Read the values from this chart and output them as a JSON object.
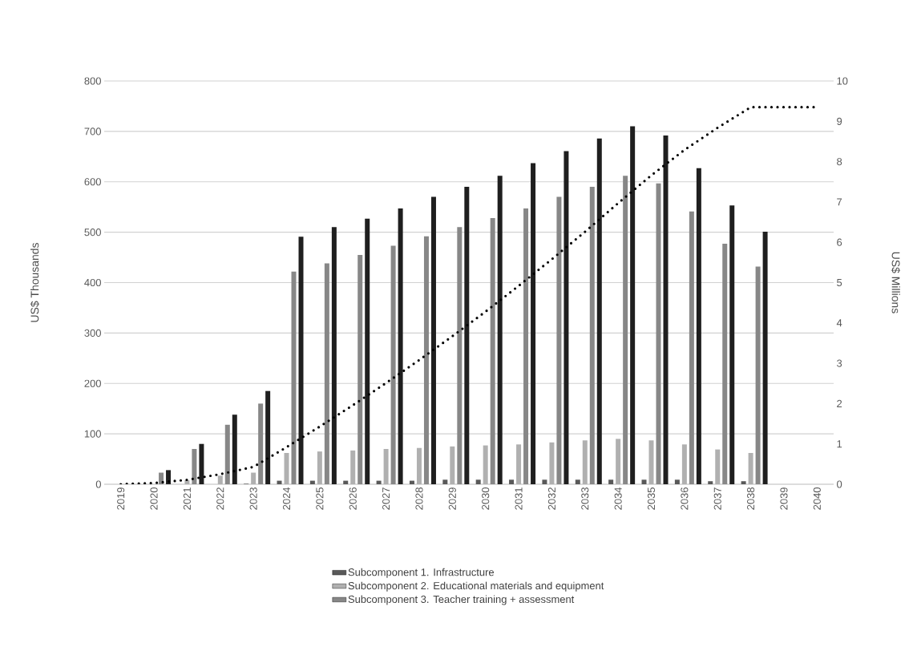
{
  "chart_data": {
    "type": "bar",
    "categories": [
      "2019",
      "2020",
      "2021",
      "2022",
      "2023",
      "2024",
      "2025",
      "2026",
      "2027",
      "2028",
      "2029",
      "2030",
      "2031",
      "2032",
      "2033",
      "2034",
      "2035",
      "2036",
      "2037",
      "2038",
      "2039",
      "2040"
    ],
    "ylabel": "US$ Thousands",
    "y2label": "US$ Millions",
    "ylim": [
      0,
      800
    ],
    "yticks": [
      0,
      100,
      200,
      300,
      400,
      500,
      600,
      700,
      800
    ],
    "y2lim": [
      0,
      10
    ],
    "y2ticks": [
      0,
      1,
      2,
      3,
      4,
      5,
      6,
      7,
      8,
      9,
      10
    ],
    "grid": "y",
    "legend": "bottom",
    "series": [
      {
        "name": "Subcomponent 1. Infrastructure",
        "color": "#595959",
        "values": [
          0,
          0,
          0,
          0,
          1,
          7,
          7,
          7,
          7,
          7,
          9,
          9,
          9,
          9,
          9,
          9,
          9,
          9,
          6,
          6,
          0,
          0
        ]
      },
      {
        "name": "Subcomponent 2. Educational materials and equipment",
        "color": "#b0b0b0",
        "values": [
          0,
          0,
          8,
          17,
          23,
          62,
          65,
          67,
          70,
          72,
          75,
          77,
          79,
          83,
          87,
          90,
          87,
          79,
          69,
          62,
          0,
          0
        ]
      },
      {
        "name": "Subcomponent 3. Teacher training + assessment",
        "color": "#878787",
        "values": [
          0,
          23,
          70,
          118,
          160,
          422,
          438,
          455,
          473,
          492,
          510,
          528,
          547,
          570,
          590,
          612,
          597,
          541,
          477,
          432,
          0,
          0
        ]
      },
      {
        "color": "#1f1f1f",
        "values": [
          0,
          28,
          80,
          138,
          185,
          491,
          510,
          527,
          547,
          570,
          590,
          612,
          637,
          661,
          686,
          710,
          692,
          627,
          553,
          501,
          0,
          0
        ]
      },
      {
        "type": "line",
        "axis": "y2",
        "color": "#000000",
        "line_style": "dotted",
        "marker": "none",
        "values": [
          0,
          0.03,
          0.11,
          0.25,
          0.43,
          0.92,
          1.43,
          1.96,
          2.51,
          3.08,
          3.67,
          4.28,
          4.92,
          5.58,
          6.26,
          6.97,
          7.66,
          8.29,
          8.84,
          9.35,
          9.35,
          9.35
        ]
      }
    ]
  }
}
